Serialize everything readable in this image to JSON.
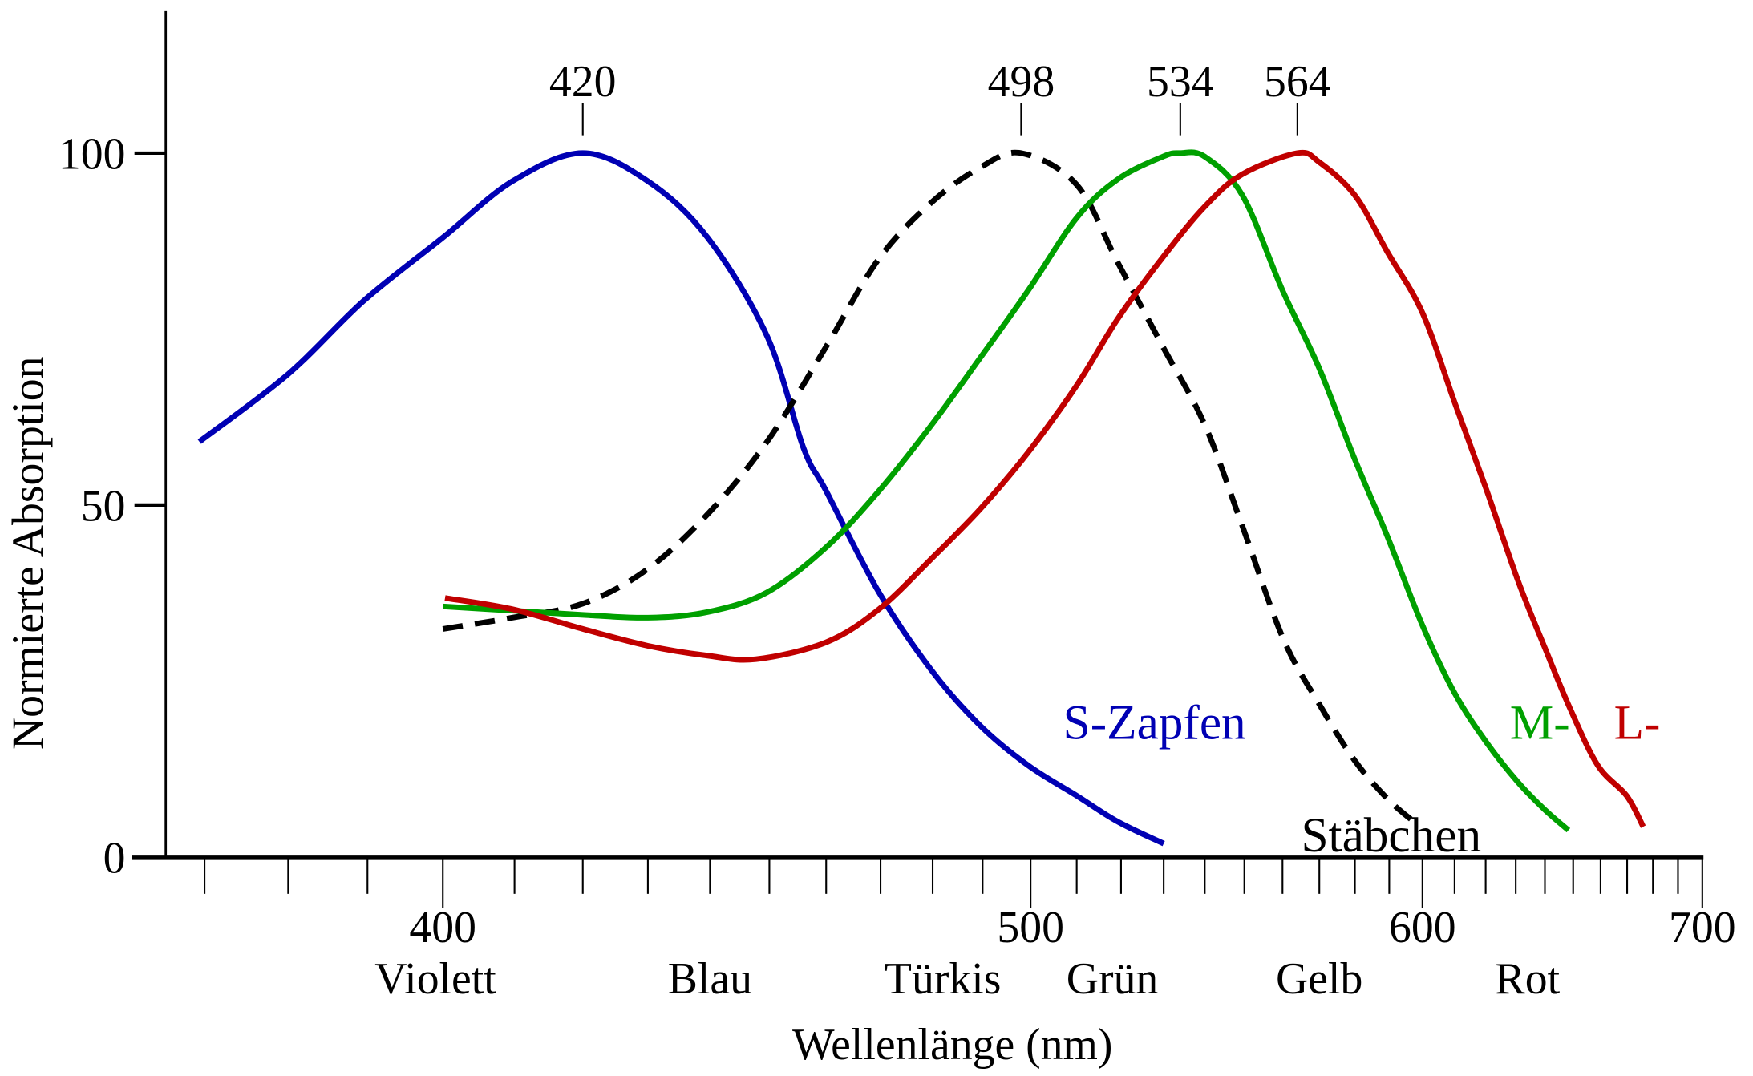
{
  "chart_data": {
    "type": "line",
    "title": "",
    "xlabel": "Wellenlänge (nm)",
    "ylabel": "Normierte Absorption",
    "x_scale": "reciprocal",
    "xlim": [
      368,
      700
    ],
    "ylim": [
      0,
      120
    ],
    "grid": false,
    "x_ticks_major": [
      400,
      500,
      600,
      700
    ],
    "x_ticks_minor_step": 10,
    "x_ticks_minor_range": [
      370,
      700
    ],
    "y_ticks": [
      0,
      50,
      100
    ],
    "color_bands": [
      {
        "label": "Violett",
        "center": 399
      },
      {
        "label": "Blau",
        "center": 440
      },
      {
        "label": "Türkis",
        "center": 482
      },
      {
        "label": "Grün",
        "center": 518
      },
      {
        "label": "Gelb",
        "center": 570
      },
      {
        "label": "Rot",
        "center": 634
      }
    ],
    "peak_labels": [
      {
        "label": "420",
        "x": 420
      },
      {
        "label": "498",
        "x": 498
      },
      {
        "label": "534",
        "x": 534
      },
      {
        "label": "564",
        "x": 564
      }
    ],
    "series": [
      {
        "name": "S-Zapfen",
        "color": "#0000b4",
        "dashed": false,
        "label_pos": {
          "x": 507,
          "y": 19
        },
        "points": [
          [
            369.4,
            59
          ],
          [
            380,
            68.6
          ],
          [
            389.5,
            79
          ],
          [
            400,
            88
          ],
          [
            409.7,
            96
          ],
          [
            420,
            100
          ],
          [
            430,
            96
          ],
          [
            439.6,
            88
          ],
          [
            449.6,
            74
          ],
          [
            456,
            58
          ],
          [
            460,
            52
          ],
          [
            469.7,
            37.6
          ],
          [
            479.8,
            26.5
          ],
          [
            489.6,
            18.6
          ],
          [
            499.5,
            13
          ],
          [
            510,
            8.7
          ],
          [
            519.3,
            5
          ],
          [
            530,
            1.9
          ]
        ]
      },
      {
        "name": "Stäbchen",
        "color": "#000000",
        "dashed": true,
        "label_pos": {
          "x": 565,
          "y": 3
        },
        "points": [
          [
            400,
            32.4
          ],
          [
            409.7,
            34
          ],
          [
            420,
            36
          ],
          [
            429.8,
            40.8
          ],
          [
            439.6,
            48.7
          ],
          [
            449.6,
            59
          ],
          [
            460,
            72.5
          ],
          [
            469.7,
            85
          ],
          [
            479.8,
            93
          ],
          [
            489.6,
            98
          ],
          [
            498,
            100
          ],
          [
            510,
            95.5
          ],
          [
            519.3,
            84.4
          ],
          [
            529.8,
            72.5
          ],
          [
            540,
            61.4
          ],
          [
            549.5,
            47
          ],
          [
            560.2,
            31
          ],
          [
            570,
            21.7
          ],
          [
            579.8,
            13.8
          ],
          [
            589.4,
            8.3
          ],
          [
            597.4,
            5
          ]
        ]
      },
      {
        "name": "M-",
        "color": "#00a000",
        "dashed": false,
        "label_pos": {
          "x": 628,
          "y": 19
        },
        "points": [
          [
            400,
            35.6
          ],
          [
            409.7,
            35
          ],
          [
            420,
            34.4
          ],
          [
            430,
            34
          ],
          [
            439.6,
            34.8
          ],
          [
            449.6,
            37.6
          ],
          [
            460,
            44
          ],
          [
            469.7,
            52
          ],
          [
            479.8,
            61.4
          ],
          [
            489.6,
            71
          ],
          [
            499.5,
            80.5
          ],
          [
            510,
            90.8
          ],
          [
            519.3,
            96.3
          ],
          [
            529.8,
            99.5
          ],
          [
            534,
            100
          ],
          [
            540,
            99.5
          ],
          [
            549.5,
            94
          ],
          [
            560,
            80.5
          ],
          [
            570,
            69.4
          ],
          [
            579.8,
            56.7
          ],
          [
            589.4,
            45.6
          ],
          [
            600,
            32.9
          ],
          [
            610,
            23.3
          ],
          [
            620.4,
            16.2
          ],
          [
            630.8,
            10.6
          ],
          [
            640,
            6.7
          ],
          [
            648.3,
            3.8
          ]
        ]
      },
      {
        "name": "L-",
        "color": "#c00000",
        "dashed": false,
        "label_pos": {
          "x": 665,
          "y": 19
        },
        "points": [
          [
            400.3,
            36.8
          ],
          [
            409.7,
            35.2
          ],
          [
            420,
            32.4
          ],
          [
            430,
            30
          ],
          [
            439.6,
            28.6
          ],
          [
            447.7,
            28.1
          ],
          [
            460,
            30.5
          ],
          [
            469.7,
            35.2
          ],
          [
            479.8,
            42.4
          ],
          [
            489.6,
            49.5
          ],
          [
            499.5,
            57.5
          ],
          [
            510,
            67
          ],
          [
            519.3,
            76.5
          ],
          [
            529.8,
            85.2
          ],
          [
            540,
            92.4
          ],
          [
            549.5,
            97
          ],
          [
            564,
            100
          ],
          [
            570,
            98.7
          ],
          [
            580,
            94
          ],
          [
            589.4,
            86
          ],
          [
            600,
            77.3
          ],
          [
            610,
            64.6
          ],
          [
            620.4,
            52
          ],
          [
            630.8,
            39.2
          ],
          [
            640,
            29.7
          ],
          [
            649,
            21
          ],
          [
            659,
            13
          ],
          [
            669.8,
            8.7
          ],
          [
            676.2,
            4.3
          ]
        ]
      }
    ]
  }
}
